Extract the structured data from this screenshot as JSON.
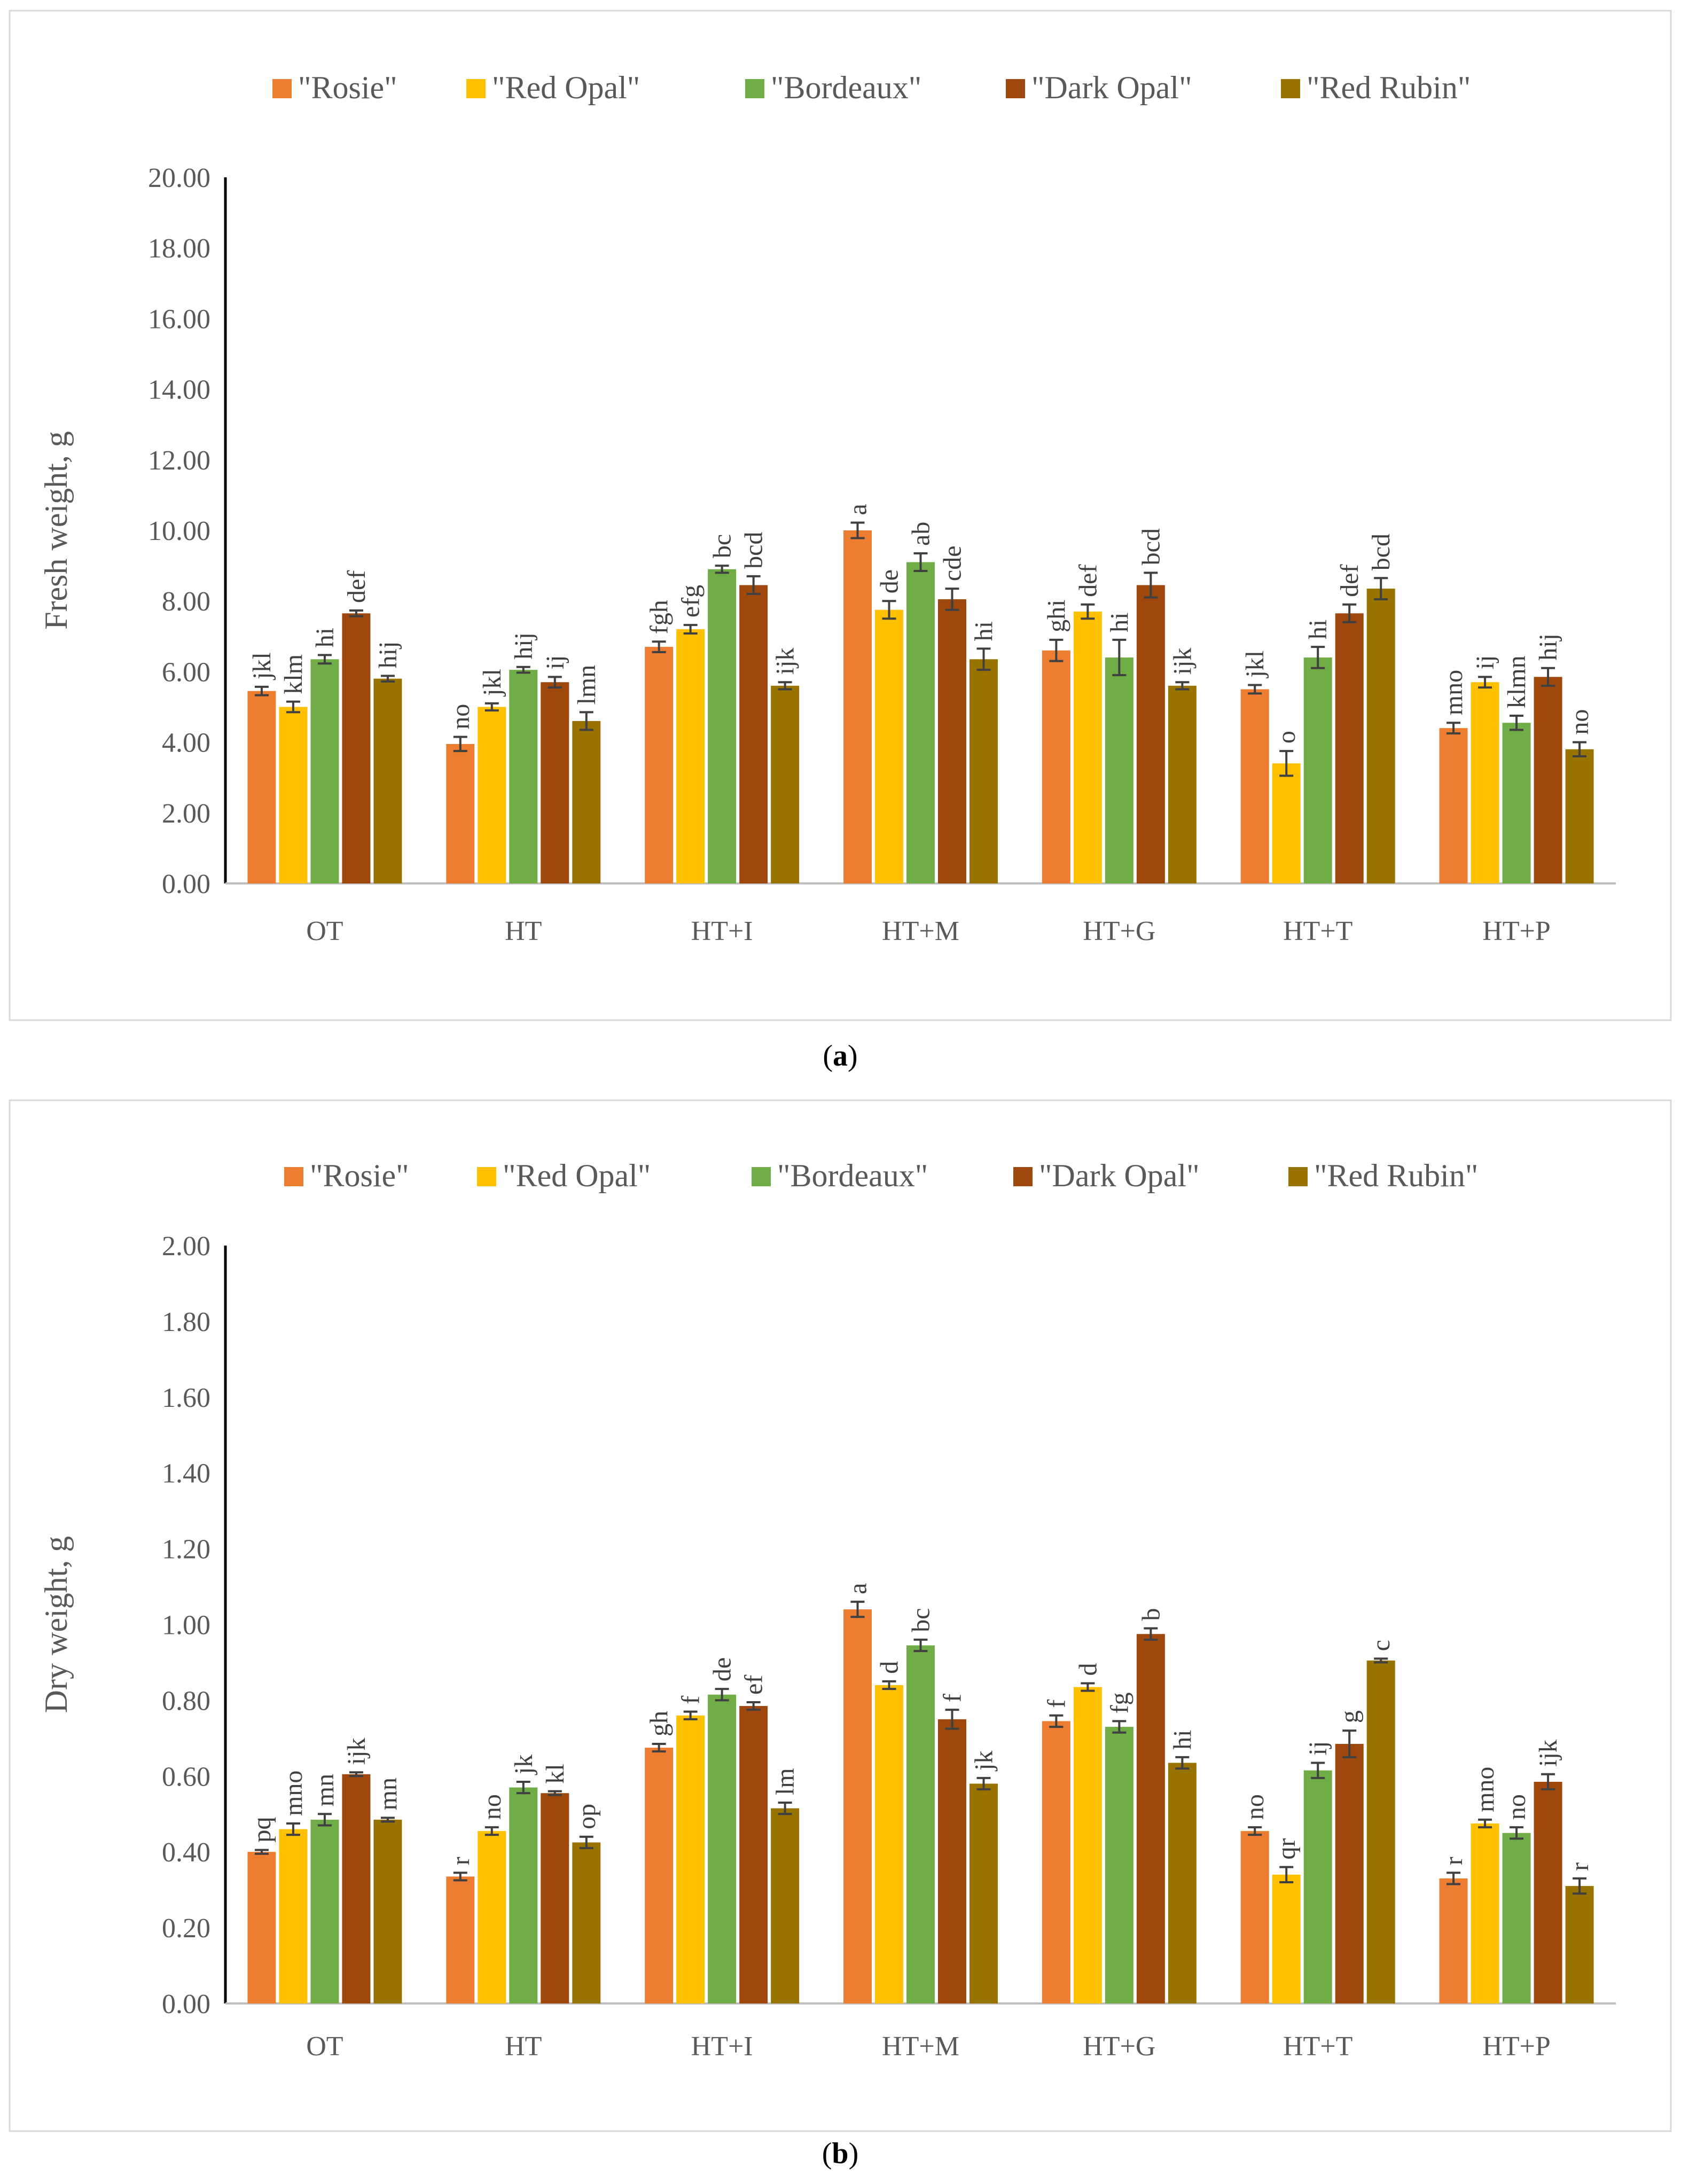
{
  "colors": {
    "Rosie": "#ED7D31",
    "Red Opal": "#FFC000",
    "Bordeaux": "#70AD47",
    "Dark Opal": "#9E480E",
    "Red Rubin": "#997300",
    "error_bar": "#404040",
    "axis": "#000000",
    "frame": "#d9d9d9"
  },
  "chart_data": [
    {
      "type": "bar",
      "panel": "a",
      "caption": "(a)",
      "ylabel": "Fresh weight, g",
      "ylim": [
        0,
        20
      ],
      "yticks": [
        "0.00",
        "2.00",
        "4.00",
        "6.00",
        "8.00",
        "10.00",
        "12.00",
        "14.00",
        "16.00",
        "18.00",
        "20.00"
      ],
      "grid": false,
      "legend_position": "top",
      "categories": [
        "OT",
        "HT",
        "HT+I",
        "HT+M",
        "HT+G",
        "HT+T",
        "HT+P"
      ],
      "series": [
        {
          "name": "\"Rosie\"",
          "key": "Rosie",
          "values": [
            5.45,
            3.95,
            6.7,
            10.0,
            6.6,
            5.5,
            4.4
          ],
          "errors": [
            0.12,
            0.2,
            0.15,
            0.22,
            0.3,
            0.12,
            0.15
          ],
          "letters": [
            "jkl",
            "no",
            "fgh",
            "a",
            "ghi",
            "jkl",
            "mno"
          ]
        },
        {
          "name": "\"Red Opal\"",
          "key": "Red Opal",
          "values": [
            5.0,
            5.0,
            7.2,
            7.75,
            7.7,
            3.4,
            5.7
          ],
          "errors": [
            0.15,
            0.1,
            0.12,
            0.25,
            0.2,
            0.35,
            0.15
          ],
          "letters": [
            "klm",
            "jkl",
            "efg",
            "de",
            "def",
            "o",
            "ij"
          ]
        },
        {
          "name": "\"Bordeaux\"",
          "key": "Bordeaux",
          "values": [
            6.35,
            6.05,
            8.9,
            9.1,
            6.4,
            6.4,
            4.55
          ],
          "errors": [
            0.12,
            0.08,
            0.1,
            0.25,
            0.5,
            0.3,
            0.2
          ],
          "letters": [
            "hi",
            "hij",
            "bc",
            "ab",
            "hi",
            "hi",
            "klmn"
          ]
        },
        {
          "name": "\"Dark Opal\"",
          "key": "Dark Opal",
          "values": [
            7.65,
            5.7,
            8.45,
            8.05,
            8.45,
            7.65,
            5.85
          ],
          "errors": [
            0.08,
            0.15,
            0.25,
            0.3,
            0.35,
            0.25,
            0.25
          ],
          "letters": [
            "def",
            "ij",
            "bcd",
            "cde",
            "bcd",
            "def",
            "hij"
          ]
        },
        {
          "name": "\"Red Rubin\"",
          "key": "Red Rubin",
          "values": [
            5.8,
            4.6,
            5.6,
            6.35,
            5.6,
            8.35,
            3.8
          ],
          "errors": [
            0.08,
            0.25,
            0.1,
            0.3,
            0.1,
            0.3,
            0.2
          ],
          "letters": [
            "hij",
            "lmn",
            "ijk",
            "hi",
            "ijk",
            "bcd",
            "no"
          ]
        }
      ]
    },
    {
      "type": "bar",
      "panel": "b",
      "caption": "(b)",
      "ylabel": "Dry weight, g",
      "ylim": [
        0,
        2
      ],
      "yticks": [
        "0.00",
        "0.20",
        "0.40",
        "0.60",
        "0.80",
        "1.00",
        "1.20",
        "1.40",
        "1.60",
        "1.80",
        "2.00"
      ],
      "grid": false,
      "legend_position": "top",
      "categories": [
        "OT",
        "HT",
        "HT+I",
        "HT+M",
        "HT+G",
        "HT+T",
        "HT+P"
      ],
      "series": [
        {
          "name": "\"Rosie\"",
          "key": "Rosie",
          "values": [
            0.4,
            0.335,
            0.675,
            1.04,
            0.745,
            0.455,
            0.33
          ],
          "errors": [
            0.005,
            0.01,
            0.01,
            0.02,
            0.015,
            0.01,
            0.015
          ],
          "letters": [
            "pq",
            "r",
            "gh",
            "a",
            "f",
            "no",
            "r"
          ]
        },
        {
          "name": "\"Red Opal\"",
          "key": "Red Opal",
          "values": [
            0.46,
            0.455,
            0.76,
            0.84,
            0.835,
            0.34,
            0.475
          ],
          "errors": [
            0.015,
            0.01,
            0.01,
            0.01,
            0.01,
            0.02,
            0.01
          ],
          "letters": [
            "mno",
            "no",
            "f",
            "d",
            "d",
            "qr",
            "mno"
          ]
        },
        {
          "name": "\"Bordeaux\"",
          "key": "Bordeaux",
          "values": [
            0.485,
            0.57,
            0.815,
            0.945,
            0.73,
            0.615,
            0.45
          ],
          "errors": [
            0.015,
            0.015,
            0.015,
            0.015,
            0.015,
            0.02,
            0.015
          ],
          "letters": [
            "mn",
            "jk",
            "de",
            "bc",
            "fg",
            "ij",
            "no"
          ]
        },
        {
          "name": "\"Dark Opal\"",
          "key": "Dark Opal",
          "values": [
            0.605,
            0.555,
            0.785,
            0.75,
            0.975,
            0.685,
            0.585
          ],
          "errors": [
            0.005,
            0.005,
            0.01,
            0.025,
            0.015,
            0.035,
            0.02
          ],
          "letters": [
            "ijk",
            "kl",
            "ef",
            "f",
            "b",
            "g",
            "ijk"
          ]
        },
        {
          "name": "\"Red Rubin\"",
          "key": "Red Rubin",
          "values": [
            0.485,
            0.425,
            0.515,
            0.58,
            0.635,
            0.905,
            0.31
          ],
          "errors": [
            0.005,
            0.015,
            0.015,
            0.015,
            0.015,
            0.005,
            0.02
          ],
          "letters": [
            "mn",
            "op",
            "lm",
            "jk",
            "hi",
            "c",
            "r"
          ]
        }
      ]
    }
  ]
}
